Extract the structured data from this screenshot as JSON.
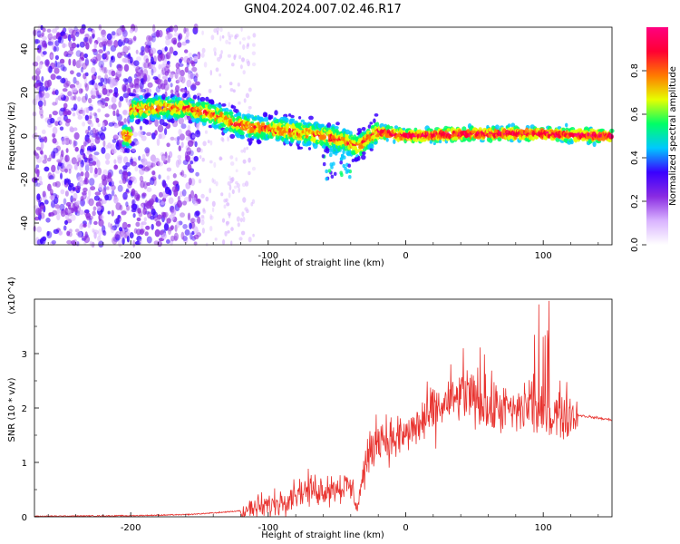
{
  "title": "GN04.2024.007.02.46.R17",
  "chart_data": [
    {
      "type": "heatmap",
      "xlabel": "Height of straight line (km)",
      "ylabel": "Frequency (Hz)",
      "xlim": [
        -270,
        150
      ],
      "ylim": [
        -50,
        50
      ],
      "x_ticks": [
        -200,
        -100,
        0,
        100
      ],
      "y_ticks": [
        -40,
        -20,
        0,
        20,
        40
      ],
      "colorbar": {
        "label": "Normalized spectral amplitude",
        "range": [
          0,
          1
        ],
        "ticks": [
          "0.0",
          "0.2",
          "0.4",
          "0.6",
          "0.8"
        ],
        "colormap": [
          "#ffffff",
          "#d9b3ff",
          "#8a2be2",
          "#3a00ff",
          "#00c8ff",
          "#00ff66",
          "#e6ff00",
          "#ff7a00",
          "#ff0033",
          "#ff0080"
        ]
      },
      "ridge": {
        "x": [
          -200,
          -180,
          -160,
          -140,
          -120,
          -100,
          -80,
          -60,
          -45,
          -35,
          -20,
          0,
          50,
          100,
          150
        ],
        "y": [
          12,
          13,
          13,
          10,
          5,
          3,
          2,
          0,
          -2,
          -5,
          2,
          0,
          1,
          1,
          0
        ]
      }
    },
    {
      "type": "line",
      "xlabel": "Height of straight line (km)",
      "ylabel": "SNR (10 * v/v)",
      "y_multiplier": "(x10^4)",
      "xlim": [
        -270,
        150
      ],
      "ylim": [
        0,
        4
      ],
      "x_ticks": [
        -200,
        -100,
        0,
        100
      ],
      "y_ticks": [
        0,
        1,
        2,
        3
      ],
      "color": "#e8322e",
      "series": [
        {
          "x": [
            -270,
            -200,
            -160,
            -140,
            -120,
            -110,
            -100,
            -90,
            -80,
            -70,
            -60,
            -50,
            -40,
            -35,
            -30,
            -25,
            -20,
            -10,
            0,
            10,
            20,
            30,
            40,
            50,
            60,
            70,
            80,
            90,
            100,
            110,
            120,
            130,
            150
          ],
          "values": [
            0.0,
            0.01,
            0.03,
            0.06,
            0.1,
            0.15,
            0.2,
            0.3,
            0.45,
            0.5,
            0.5,
            0.55,
            0.55,
            0.2,
            0.9,
            1.2,
            1.5,
            1.4,
            1.5,
            1.7,
            1.9,
            2.1,
            2.2,
            2.2,
            2.0,
            2.0,
            1.9,
            2.1,
            1.8,
            1.9,
            1.9,
            1.85,
            1.78
          ]
        }
      ]
    }
  ]
}
